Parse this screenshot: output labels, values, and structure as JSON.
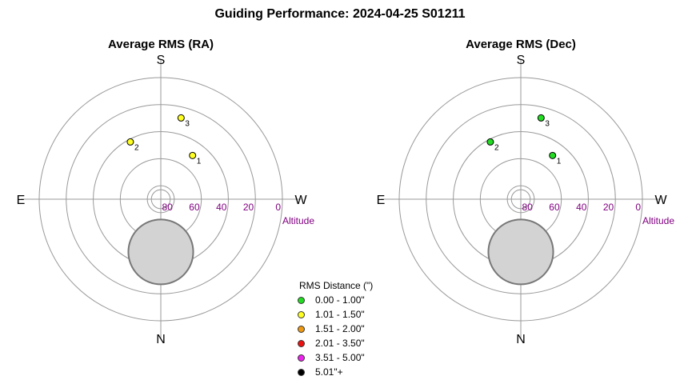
{
  "title": "Guiding Performance: 2024-04-25 S01211",
  "legend": {
    "title": "RMS Distance (\")",
    "items": [
      {
        "label": "0.00 - 1.00\"",
        "color": "#22dd22"
      },
      {
        "label": "1.01 - 1.50\"",
        "color": "#ffff22"
      },
      {
        "label": "1.51 - 2.00\"",
        "color": "#ee9911"
      },
      {
        "label": "2.01 - 3.50\"",
        "color": "#ee1111"
      },
      {
        "label": "3.51 - 5.00\"",
        "color": "#ee22ee"
      },
      {
        "label": "5.01\"+",
        "color": "#000000"
      }
    ]
  },
  "chart_data": [
    {
      "type": "polar-scatter",
      "title": "Average RMS (RA)",
      "directions": {
        "top": "S",
        "bottom": "N",
        "left": "E",
        "right": "W"
      },
      "radial_axis": {
        "label": "Altitude",
        "ticks": [
          80,
          60,
          40,
          20,
          0
        ],
        "range": [
          90,
          0
        ]
      },
      "center_disc_altitude": 83,
      "obstruction": {
        "azimuth_deg": 0,
        "altitude_deg": 51,
        "radius_deg": 24,
        "color": "#d3d3d3"
      },
      "points": [
        {
          "label": "1",
          "azimuth_deg": 216,
          "altitude_deg": 50,
          "rms_bin": 1
        },
        {
          "label": "2",
          "azimuth_deg": 152,
          "altitude_deg": 42,
          "rms_bin": 1
        },
        {
          "label": "3",
          "azimuth_deg": 194,
          "altitude_deg": 28,
          "rms_bin": 1
        }
      ]
    },
    {
      "type": "polar-scatter",
      "title": "Average RMS (Dec)",
      "directions": {
        "top": "S",
        "bottom": "N",
        "left": "E",
        "right": "W"
      },
      "radial_axis": {
        "label": "Altitude",
        "ticks": [
          80,
          60,
          40,
          20,
          0
        ],
        "range": [
          90,
          0
        ]
      },
      "center_disc_altitude": 83,
      "obstruction": {
        "azimuth_deg": 0,
        "altitude_deg": 51,
        "radius_deg": 24,
        "color": "#d3d3d3"
      },
      "points": [
        {
          "label": "1",
          "azimuth_deg": 216,
          "altitude_deg": 50,
          "rms_bin": 0
        },
        {
          "label": "2",
          "azimuth_deg": 152,
          "altitude_deg": 42,
          "rms_bin": 0
        },
        {
          "label": "3",
          "azimuth_deg": 194,
          "altitude_deg": 28,
          "rms_bin": 0
        }
      ]
    }
  ]
}
